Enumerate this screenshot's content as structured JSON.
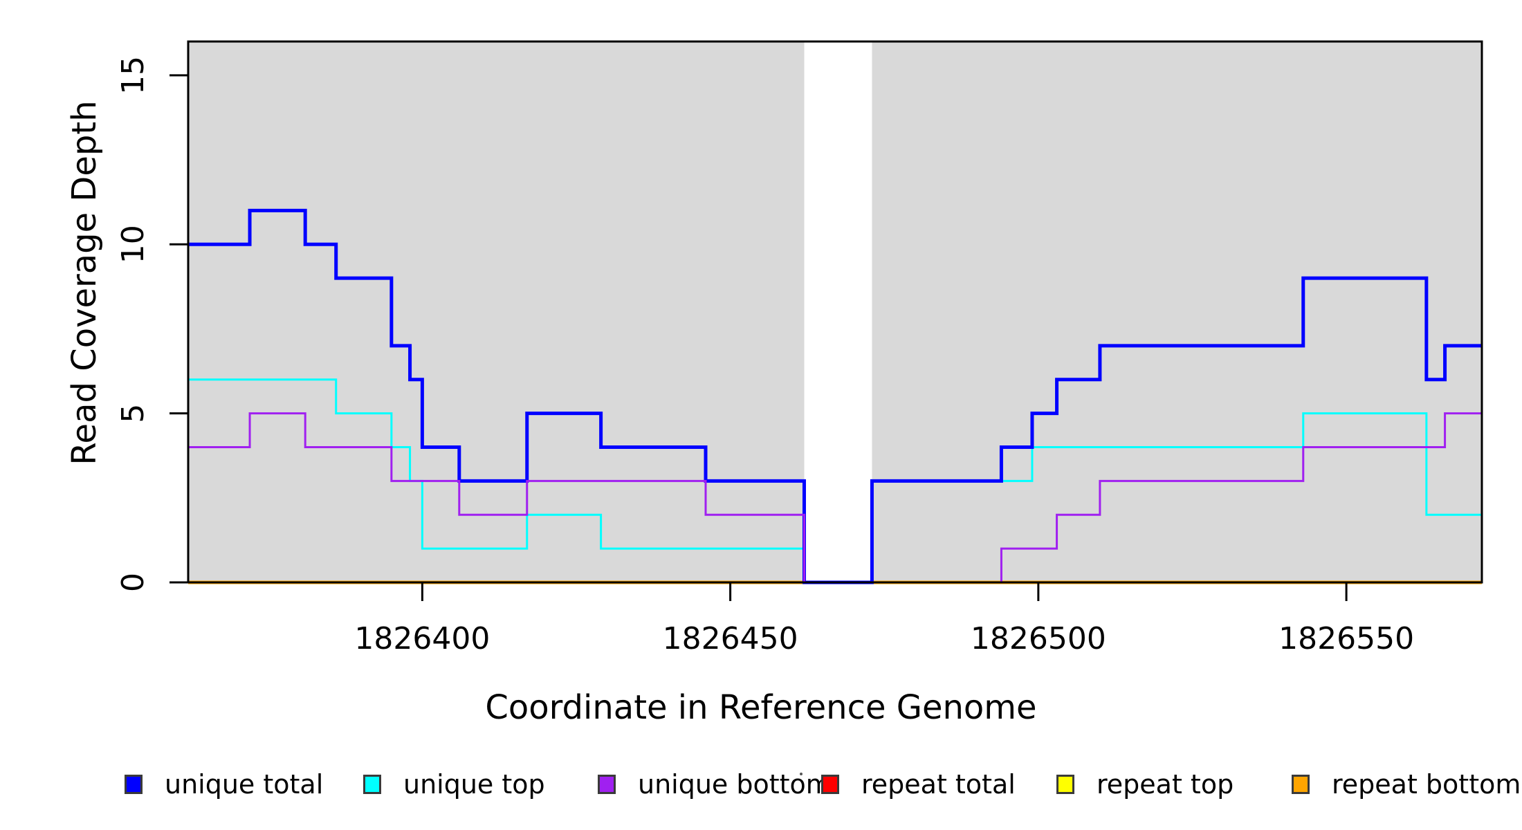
{
  "figure": {
    "xlabel": "Coordinate in Reference Genome",
    "ylabel": "Read Coverage Depth"
  },
  "chart_data": {
    "type": "step",
    "xlabel": "Coordinate in Reference Genome",
    "ylabel": "Read Coverage Depth",
    "xlim": [
      1826362,
      1826572
    ],
    "ylim": [
      0,
      16
    ],
    "x_ticks": [
      1826400,
      1826450,
      1826500,
      1826550
    ],
    "y_ticks": [
      0,
      5,
      10,
      15
    ],
    "grid": false,
    "plot_background": "#ffffff",
    "shaded_regions": [
      {
        "name": "left-alignment-block",
        "start": 1826362,
        "end": 1826462,
        "color": "#d9d9d9"
      },
      {
        "name": "right-alignment-block",
        "start": 1826473,
        "end": 1826572,
        "color": "#d9d9d9"
      }
    ],
    "series": [
      {
        "name": "repeat total",
        "color": "#ff0000",
        "width": 4,
        "points": [
          [
            1826362,
            0
          ]
        ]
      },
      {
        "name": "repeat top",
        "color": "#ffff00",
        "width": 4,
        "points": [
          [
            1826362,
            0
          ]
        ]
      },
      {
        "name": "repeat bottom",
        "color": "#ffa500",
        "width": 5,
        "points": [
          [
            1826362,
            0
          ]
        ]
      },
      {
        "name": "unique top",
        "color": "#00ffff",
        "width": 3,
        "points": [
          [
            1826362,
            6
          ],
          [
            1826386,
            5
          ],
          [
            1826395,
            4
          ],
          [
            1826398,
            3
          ],
          [
            1826400,
            1
          ],
          [
            1826417,
            2
          ],
          [
            1826429,
            1
          ],
          [
            1826462,
            0
          ],
          [
            1826473,
            3
          ],
          [
            1826499,
            4
          ],
          [
            1826543,
            5
          ],
          [
            1826563,
            2
          ]
        ]
      },
      {
        "name": "unique total",
        "color": "#0000ff",
        "width": 5,
        "points": [
          [
            1826362,
            10
          ],
          [
            1826372,
            11
          ],
          [
            1826381,
            10
          ],
          [
            1826386,
            9
          ],
          [
            1826395,
            7
          ],
          [
            1826398,
            6
          ],
          [
            1826400,
            4
          ],
          [
            1826406,
            3
          ],
          [
            1826417,
            5
          ],
          [
            1826429,
            4
          ],
          [
            1826446,
            3
          ],
          [
            1826462,
            0
          ],
          [
            1826473,
            3
          ],
          [
            1826494,
            4
          ],
          [
            1826499,
            5
          ],
          [
            1826503,
            6
          ],
          [
            1826510,
            7
          ],
          [
            1826543,
            9
          ],
          [
            1826563,
            6
          ],
          [
            1826566,
            7
          ]
        ]
      },
      {
        "name": "unique bottom",
        "color": "#a020f0",
        "width": 3,
        "points": [
          [
            1826362,
            4
          ],
          [
            1826372,
            5
          ],
          [
            1826381,
            4
          ],
          [
            1826395,
            3
          ],
          [
            1826406,
            2
          ],
          [
            1826417,
            3
          ],
          [
            1826446,
            2
          ],
          [
            1826462,
            0
          ],
          [
            1826494,
            1
          ],
          [
            1826503,
            2
          ],
          [
            1826510,
            3
          ],
          [
            1826543,
            4
          ],
          [
            1826566,
            5
          ]
        ]
      }
    ],
    "legend": [
      {
        "label": "unique total",
        "color": "#0000ff"
      },
      {
        "label": "unique top",
        "color": "#00ffff"
      },
      {
        "label": "unique bottom",
        "color": "#a020f0"
      },
      {
        "label": "repeat total",
        "color": "#ff0000"
      },
      {
        "label": "repeat top",
        "color": "#ffff00"
      },
      {
        "label": "repeat bottom",
        "color": "#ffa500"
      }
    ],
    "legend_position": "bottom",
    "axis_color": "#000000",
    "tick_label_font_size": 44,
    "title": ""
  }
}
